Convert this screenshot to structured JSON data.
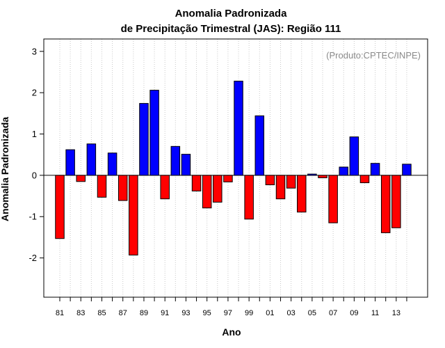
{
  "chart_data": {
    "type": "bar",
    "title": "Anomalia Padronizada",
    "subtitle": "de Precipitação Trimestral (JAS): Região 111",
    "xlabel": "Ano",
    "ylabel": "Anomalia Padronizada",
    "annotation": "(Produto:CPTEC/INPE)",
    "ylim": [
      -2.95,
      3.3
    ],
    "yticks": [
      -2,
      -1,
      0,
      1,
      2,
      3
    ],
    "grid": "vertical-dotted",
    "categories": [
      "81",
      "82",
      "83",
      "84",
      "85",
      "86",
      "87",
      "88",
      "89",
      "90",
      "91",
      "92",
      "93",
      "94",
      "95",
      "96",
      "97",
      "98",
      "99",
      "00",
      "01",
      "02",
      "03",
      "04",
      "05",
      "06",
      "07",
      "08",
      "09",
      "10",
      "11",
      "12",
      "13",
      "14"
    ],
    "xtick_labels": [
      "81",
      "83",
      "85",
      "87",
      "89",
      "91",
      "93",
      "95",
      "97",
      "99",
      "01",
      "03",
      "05",
      "07",
      "09",
      "11",
      "13"
    ],
    "values": [
      -1.53,
      0.62,
      -0.15,
      0.76,
      -0.53,
      0.54,
      -0.61,
      -1.93,
      1.74,
      2.06,
      -0.57,
      0.7,
      0.51,
      -0.38,
      -0.79,
      -0.65,
      -0.16,
      2.28,
      -1.06,
      1.44,
      -0.23,
      -0.57,
      -0.31,
      -0.89,
      0.03,
      -0.06,
      -1.15,
      0.2,
      0.93,
      -0.18,
      0.29,
      -1.39,
      -1.27,
      0.27
    ],
    "colors": {
      "positive": "#0000ff",
      "negative": "#ff0000"
    }
  }
}
